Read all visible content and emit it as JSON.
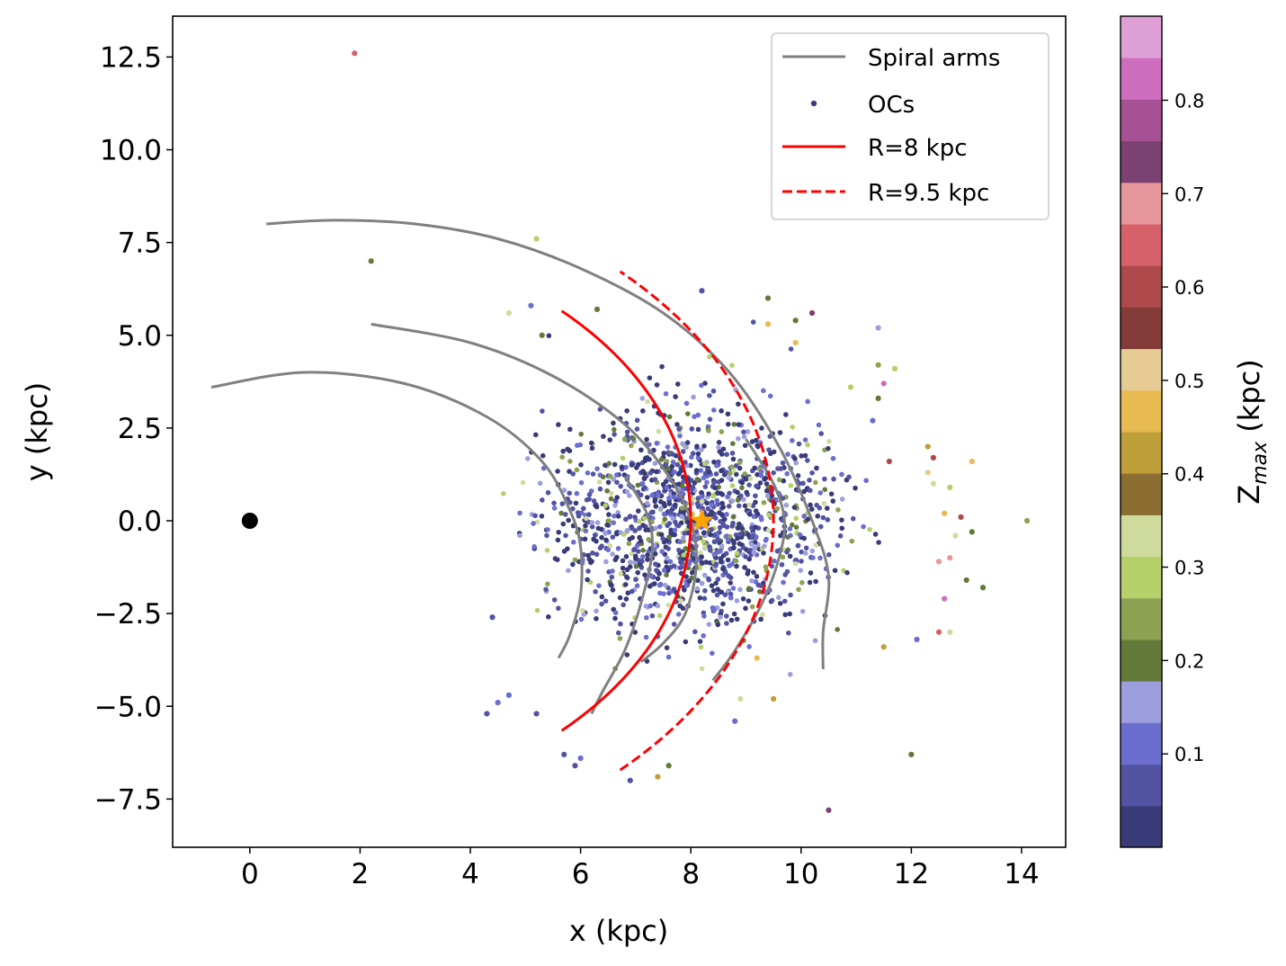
{
  "chart_data": {
    "type": "scatter",
    "title": "",
    "xlabel": "x (kpc)",
    "ylabel": "y (kpc)",
    "xlim": [
      -1.4,
      14.8
    ],
    "ylim": [
      -8.8,
      13.6
    ],
    "xticks": [
      0,
      2,
      4,
      6,
      8,
      10,
      12,
      14
    ],
    "xtick_labels": [
      "0",
      "2",
      "4",
      "6",
      "8",
      "10",
      "12",
      "14"
    ],
    "yticks": [
      -7.5,
      -5.0,
      -2.5,
      0.0,
      2.5,
      5.0,
      7.5,
      10.0,
      12.5
    ],
    "ytick_labels": [
      "−7.5",
      "−5.0",
      "−2.5",
      "0.0",
      "2.5",
      "5.0",
      "7.5",
      "10.0",
      "12.5"
    ],
    "grid": false,
    "legend": {
      "location": "top-right",
      "entries": [
        {
          "label": "Spiral arms",
          "style": "line",
          "color": "#808080"
        },
        {
          "label": "OCs",
          "style": "marker",
          "color": "#393b79"
        },
        {
          "label": "R=8 kpc",
          "style": "line",
          "color": "#ff0000"
        },
        {
          "label": "R=9.5 kpc",
          "style": "dashed",
          "color": "#ff0000"
        }
      ]
    },
    "galactic_center": {
      "x": 0.0,
      "y": 0.0,
      "color": "#000000"
    },
    "sun": {
      "x": 8.2,
      "y": 0.0,
      "color": "#ffa500",
      "marker": "star"
    },
    "circles": [
      {
        "name": "R=8 kpc",
        "radius": 8.0,
        "angle_range_deg": [
          -45,
          45
        ],
        "color": "#ff0000",
        "style": "solid"
      },
      {
        "name": "R=9.5 kpc",
        "radius": 9.5,
        "angle_range_deg": [
          -45,
          45
        ],
        "color": "#ff0000",
        "style": "dashed"
      }
    ],
    "spiral_arms": [
      {
        "name": "arm-1",
        "points": [
          [
            0.3,
            8.0
          ],
          [
            1.5,
            8.1
          ],
          [
            3.0,
            8.0
          ],
          [
            4.5,
            7.6
          ],
          [
            6.0,
            6.8
          ],
          [
            7.5,
            5.6
          ],
          [
            8.7,
            4.0
          ],
          [
            9.6,
            2.0
          ],
          [
            10.2,
            0.0
          ],
          [
            10.5,
            -1.5
          ],
          [
            10.4,
            -3.0
          ],
          [
            10.4,
            -4.0
          ]
        ]
      },
      {
        "name": "arm-2",
        "points": [
          [
            2.2,
            5.3
          ],
          [
            4.0,
            4.8
          ],
          [
            5.5,
            3.9
          ],
          [
            6.8,
            2.6
          ],
          [
            7.6,
            1.2
          ],
          [
            8.0,
            0.0
          ],
          [
            8.1,
            -1.2
          ],
          [
            7.9,
            -2.5
          ],
          [
            7.5,
            -3.3
          ],
          [
            7.1,
            -3.8
          ]
        ]
      },
      {
        "name": "arm-3",
        "points": [
          [
            -0.7,
            3.6
          ],
          [
            1.0,
            4.0
          ],
          [
            2.8,
            3.7
          ],
          [
            4.3,
            2.8
          ],
          [
            5.3,
            1.6
          ],
          [
            5.8,
            0.3
          ],
          [
            6.0,
            -0.7
          ],
          [
            6.0,
            -2.0
          ],
          [
            5.8,
            -3.1
          ],
          [
            5.6,
            -3.7
          ]
        ]
      },
      {
        "name": "arm-4",
        "points": [
          [
            9.0,
            2.2
          ],
          [
            9.5,
            1.0
          ],
          [
            9.7,
            0.0
          ],
          [
            9.6,
            -1.0
          ],
          [
            9.3,
            -2.2
          ],
          [
            8.8,
            -3.5
          ],
          [
            8.4,
            -4.3
          ]
        ]
      },
      {
        "name": "arm-5",
        "points": [
          [
            6.8,
            1.2
          ],
          [
            7.2,
            0.2
          ],
          [
            7.3,
            -0.8
          ],
          [
            7.1,
            -2.2
          ],
          [
            6.8,
            -3.5
          ],
          [
            6.4,
            -4.6
          ],
          [
            6.2,
            -5.2
          ]
        ]
      }
    ],
    "colorbar": {
      "label": "Z_max (kpc)",
      "label_main": "Z",
      "label_sub": "max",
      "label_unit": " (kpc)",
      "range": [
        0.0,
        0.89
      ],
      "ticks": [
        0.1,
        0.2,
        0.3,
        0.4,
        0.5,
        0.6,
        0.7,
        0.8
      ],
      "tick_labels": [
        "0.1",
        "0.2",
        "0.3",
        "0.4",
        "0.5",
        "0.6",
        "0.7",
        "0.8"
      ],
      "colormap": "tab20b",
      "colors": [
        "#393b79",
        "#5254a3",
        "#6b6ecf",
        "#9c9ede",
        "#637939",
        "#8ca252",
        "#b5cf6b",
        "#cedb9c",
        "#8c6d31",
        "#bd9e39",
        "#e7ba52",
        "#e7cb94",
        "#843c39",
        "#ad494a",
        "#d6616b",
        "#e7969c",
        "#7b4173",
        "#a55194",
        "#ce6dbd",
        "#de9ed6"
      ]
    },
    "highlight_points": [
      {
        "x": 1.9,
        "y": 12.6,
        "z": 0.65
      },
      {
        "x": 2.2,
        "y": 7.0,
        "z": 0.22
      },
      {
        "x": 5.2,
        "y": 7.6,
        "z": 0.31
      },
      {
        "x": 4.7,
        "y": 5.6,
        "z": 0.33
      },
      {
        "x": 5.1,
        "y": 5.8,
        "z": 0.12
      },
      {
        "x": 5.3,
        "y": 5.0,
        "z": 0.21
      },
      {
        "x": 6.3,
        "y": 5.7,
        "z": 0.2
      },
      {
        "x": 8.2,
        "y": 6.2,
        "z": 0.05
      },
      {
        "x": 9.4,
        "y": 6.0,
        "z": 0.22
      },
      {
        "x": 10.2,
        "y": 5.6,
        "z": 0.72
      },
      {
        "x": 9.4,
        "y": 5.3,
        "z": 0.48
      },
      {
        "x": 9.9,
        "y": 5.4,
        "z": 0.2
      },
      {
        "x": 9.9,
        "y": 4.8,
        "z": 0.48
      },
      {
        "x": 11.4,
        "y": 5.2,
        "z": 0.15
      },
      {
        "x": 11.4,
        "y": 4.2,
        "z": 0.24
      },
      {
        "x": 11.7,
        "y": 4.1,
        "z": 0.28
      },
      {
        "x": 11.5,
        "y": 3.7,
        "z": 0.84
      },
      {
        "x": 11.4,
        "y": 3.3,
        "z": 0.2
      },
      {
        "x": 10.9,
        "y": 3.6,
        "z": 0.28
      },
      {
        "x": 11.3,
        "y": 2.7,
        "z": 0.12
      },
      {
        "x": 12.3,
        "y": 2.0,
        "z": 0.43
      },
      {
        "x": 12.4,
        "y": 1.7,
        "z": 0.6
      },
      {
        "x": 12.3,
        "y": 1.3,
        "z": 0.5
      },
      {
        "x": 12.4,
        "y": 1.0,
        "z": 0.32
      },
      {
        "x": 11.6,
        "y": 1.6,
        "z": 0.6
      },
      {
        "x": 13.1,
        "y": 1.6,
        "z": 0.47
      },
      {
        "x": 12.7,
        "y": 0.9,
        "z": 0.3
      },
      {
        "x": 12.6,
        "y": 0.2,
        "z": 0.47
      },
      {
        "x": 12.9,
        "y": 0.1,
        "z": 0.6
      },
      {
        "x": 14.1,
        "y": 0.0,
        "z": 0.25
      },
      {
        "x": 13.1,
        "y": -0.3,
        "z": 0.22
      },
      {
        "x": 12.8,
        "y": -0.4,
        "z": 0.32
      },
      {
        "x": 12.7,
        "y": -1.0,
        "z": 0.71
      },
      {
        "x": 12.5,
        "y": -1.1,
        "z": 0.7
      },
      {
        "x": 13.0,
        "y": -1.6,
        "z": 0.22
      },
      {
        "x": 13.3,
        "y": -1.8,
        "z": 0.21
      },
      {
        "x": 12.6,
        "y": -2.1,
        "z": 0.84
      },
      {
        "x": 12.5,
        "y": -3.0,
        "z": 0.66
      },
      {
        "x": 12.7,
        "y": -3.0,
        "z": 0.33
      },
      {
        "x": 12.1,
        "y": -3.2,
        "z": 0.13
      },
      {
        "x": 11.5,
        "y": -3.4,
        "z": 0.42
      },
      {
        "x": 12.0,
        "y": -6.3,
        "z": 0.21
      },
      {
        "x": 10.5,
        "y": -7.8,
        "z": 0.74
      },
      {
        "x": 9.5,
        "y": -4.8,
        "z": 0.42
      },
      {
        "x": 9.2,
        "y": -3.7,
        "z": 0.45
      },
      {
        "x": 8.9,
        "y": -4.8,
        "z": 0.32
      },
      {
        "x": 7.4,
        "y": -6.9,
        "z": 0.42
      },
      {
        "x": 7.6,
        "y": -6.6,
        "z": 0.2
      },
      {
        "x": 6.9,
        "y": -7.0,
        "z": 0.05
      },
      {
        "x": 5.7,
        "y": -6.3,
        "z": 0.05
      },
      {
        "x": 6.0,
        "y": -6.4,
        "z": 0.12
      },
      {
        "x": 5.9,
        "y": -6.6,
        "z": 0.05
      },
      {
        "x": 4.3,
        "y": -5.2,
        "z": 0.05
      },
      {
        "x": 4.5,
        "y": -4.9,
        "z": 0.1
      },
      {
        "x": 4.7,
        "y": -4.7,
        "z": 0.12
      },
      {
        "x": 5.2,
        "y": -5.2,
        "z": 0.05
      },
      {
        "x": 4.4,
        "y": -2.6,
        "z": 0.05
      },
      {
        "x": 8.8,
        "y": -5.4,
        "z": 0.1
      }
    ],
    "cluster_summary": {
      "center": [
        8.0,
        0.0
      ],
      "spread_x": 1.3,
      "spread_y": 1.4,
      "count": 1400,
      "z_range": [
        0.0,
        0.35
      ]
    }
  }
}
